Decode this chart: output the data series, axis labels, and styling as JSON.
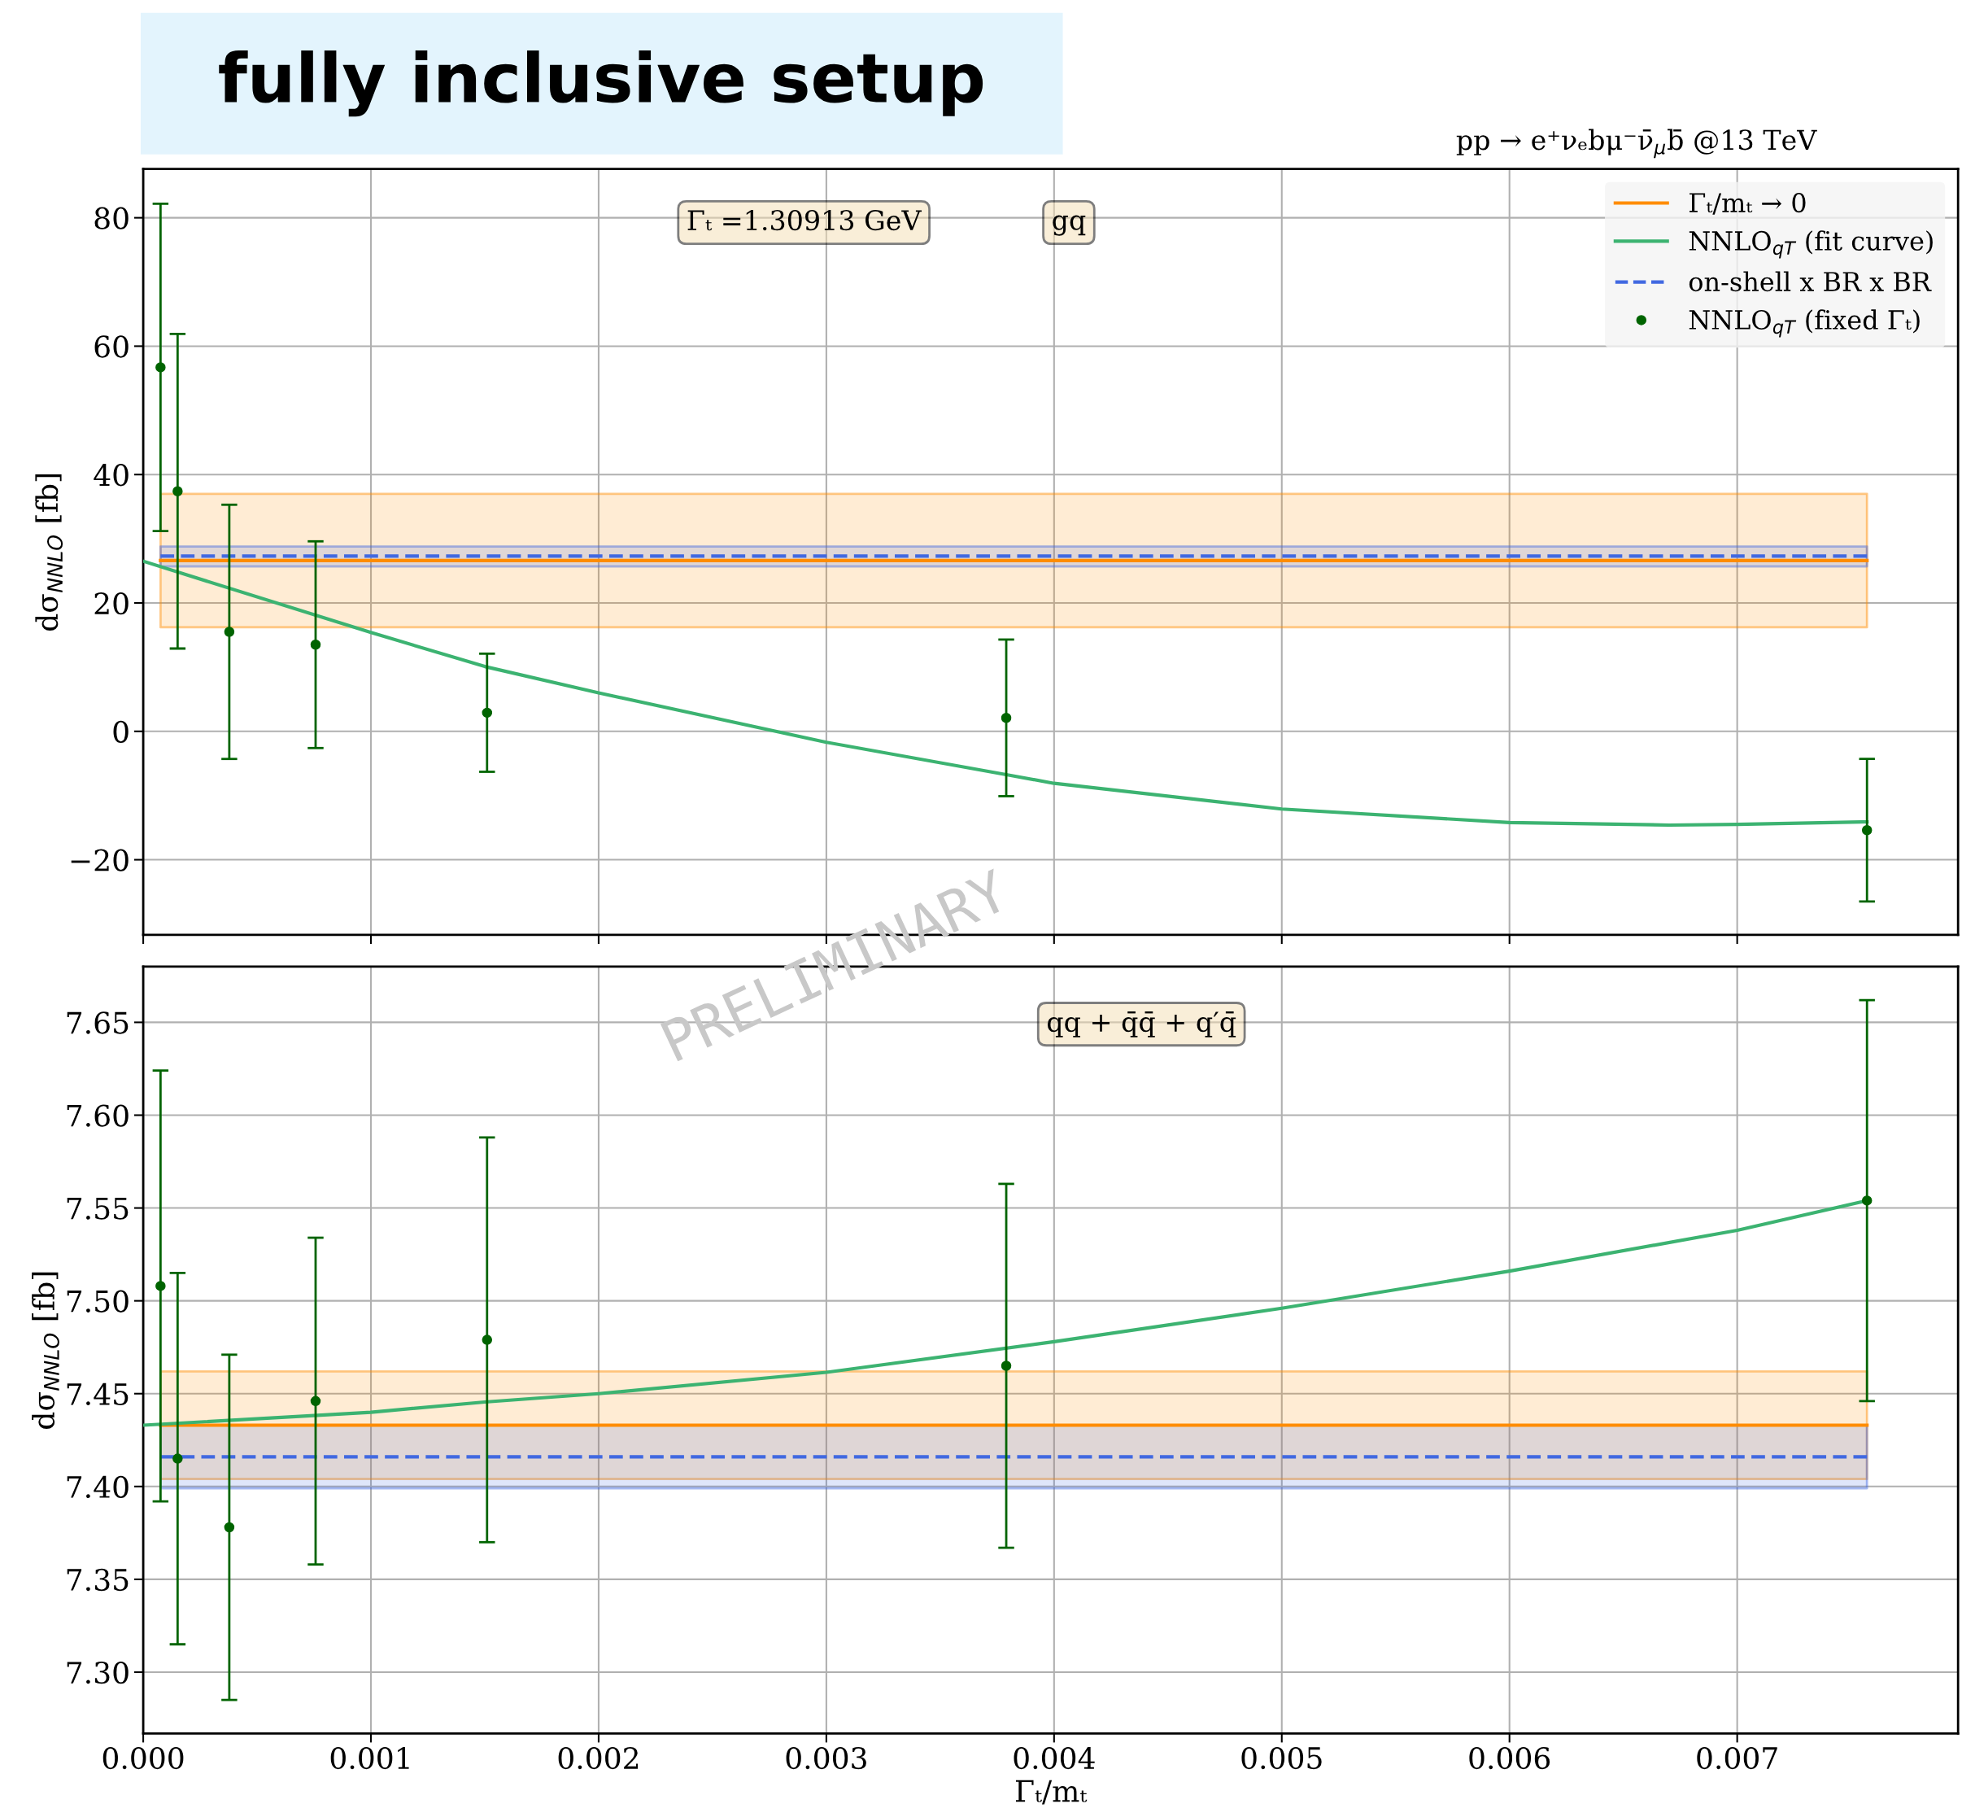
{
  "chart_data": [
    {
      "type": "line",
      "title": "fully inclusive setup",
      "subtitle": "pp → e⁺νₑbμ⁻ν̄$_{μ}$b̄ @13 TeV",
      "ylabel": "dσ$_{NNLO}$ [fb]",
      "annotations": [
        "Γₜ =1.30913 GeV",
        "gq",
        "PRELIMINARY"
      ],
      "xlim": [
        0,
        0.00797
      ],
      "ylim": [
        -31.7,
        87.6
      ],
      "xticks": [
        0,
        0.001,
        0.002,
        0.003,
        0.004,
        0.005,
        0.006,
        0.007
      ],
      "yticks": [
        {
          "value": -20,
          "label": "−20"
        },
        0,
        20,
        40,
        60,
        80
      ],
      "tick_labels": "y",
      "grid": true,
      "legend": "top right",
      "series": [
        {
          "name": "Γₜ/mₜ → 0",
          "color": "#ff8c00",
          "line_style": "solid",
          "x": [
            7.6e-05,
            0.00757
          ],
          "values": [
            26.6,
            26.6
          ],
          "lower": [
            16.2,
            16.2
          ],
          "upper": [
            37.0,
            37.0
          ]
        },
        {
          "name": "NNLO$_{qT}$ (fit curve)",
          "color": "#3cb371",
          "line_style": "solid",
          "x": [
            0,
            0.001,
            0.0015,
            0.002,
            0.003,
            0.0038,
            0.004,
            0.005,
            0.006,
            0.0067,
            0.007,
            0.00757
          ],
          "values": [
            26.5,
            15.4,
            10.1,
            6.0,
            -1.7,
            -6.8,
            -8.1,
            -12.1,
            -14.2,
            -14.6,
            -14.5,
            -14.1
          ]
        },
        {
          "name": "on-shell x BR x BR",
          "color": "#4169e1",
          "line_style": "dashed",
          "x": [
            7.6e-05,
            0.00757
          ],
          "values": [
            27.3,
            27.3
          ],
          "lower": [
            25.7,
            25.7
          ],
          "upper": [
            28.8,
            28.8
          ]
        },
        {
          "name": "NNLO$_{qT}$ (fixed Γₜ)",
          "type": "scatter",
          "color": "#006400",
          "marker": "circle",
          "x": [
            7.6e-05,
            0.000151,
            0.000378,
            0.000757,
            0.00151,
            0.00379,
            0.00757
          ],
          "values": [
            56.7,
            37.4,
            15.5,
            13.5,
            2.9,
            2.1,
            -15.4
          ],
          "errors": [
            25.5,
            24.5,
            19.8,
            16.1,
            9.2,
            12.2,
            11.1
          ]
        }
      ]
    },
    {
      "type": "line",
      "xlabel": "Γₜ/mₜ",
      "ylabel": "dσ$_{NNLO}$ [fb]",
      "annotations": [
        "qq + q̄q̄ + q′q̄"
      ],
      "xlim": [
        0,
        0.00797
      ],
      "ylim": [
        7.267,
        7.68
      ],
      "xticks": [
        {
          "value": 0,
          "label": "0.000"
        },
        {
          "value": 0.001,
          "label": "0.001"
        },
        {
          "value": 0.002,
          "label": "0.002"
        },
        {
          "value": 0.003,
          "label": "0.003"
        },
        {
          "value": 0.004,
          "label": "0.004"
        },
        {
          "value": 0.005,
          "label": "0.005"
        },
        {
          "value": 0.006,
          "label": "0.006"
        },
        {
          "value": 0.007,
          "label": "0.007"
        }
      ],
      "yticks": [
        {
          "value": 7.3,
          "label": "7.30"
        },
        {
          "value": 7.35,
          "label": "7.35"
        },
        {
          "value": 7.4,
          "label": "7.40"
        },
        {
          "value": 7.45,
          "label": "7.45"
        },
        {
          "value": 7.5,
          "label": "7.50"
        },
        {
          "value": 7.55,
          "label": "7.55"
        },
        {
          "value": 7.6,
          "label": "7.60"
        },
        {
          "value": 7.65,
          "label": "7.65"
        }
      ],
      "grid": true,
      "series": [
        {
          "color": "#ff8c00",
          "line_style": "solid",
          "x": [
            7.6e-05,
            0.00757
          ],
          "values": [
            7.433,
            7.433
          ],
          "lower": [
            7.404,
            7.404
          ],
          "upper": [
            7.462,
            7.462
          ]
        },
        {
          "color": "#3cb371",
          "line_style": "solid",
          "x": [
            0,
            0.001,
            0.0015,
            0.002,
            0.003,
            0.004,
            0.005,
            0.006,
            0.007,
            0.00757
          ],
          "values": [
            7.433,
            7.44,
            7.4455,
            7.45,
            7.4615,
            7.478,
            7.496,
            7.516,
            7.538,
            7.554
          ]
        },
        {
          "color": "#4169e1",
          "line_style": "dashed",
          "x": [
            7.6e-05,
            0.00757
          ],
          "values": [
            7.416,
            7.416
          ],
          "lower": [
            7.399,
            7.399
          ],
          "upper": [
            7.433,
            7.433
          ]
        },
        {
          "type": "scatter",
          "color": "#006400",
          "marker": "circle",
          "x": [
            7.6e-05,
            0.000151,
            0.000378,
            0.000757,
            0.00151,
            0.00379,
            0.00757
          ],
          "values": [
            7.508,
            7.415,
            7.378,
            7.446,
            7.479,
            7.465,
            7.554
          ],
          "errors": [
            0.116,
            0.1,
            0.093,
            0.088,
            0.109,
            0.098,
            0.108
          ]
        }
      ]
    }
  ]
}
